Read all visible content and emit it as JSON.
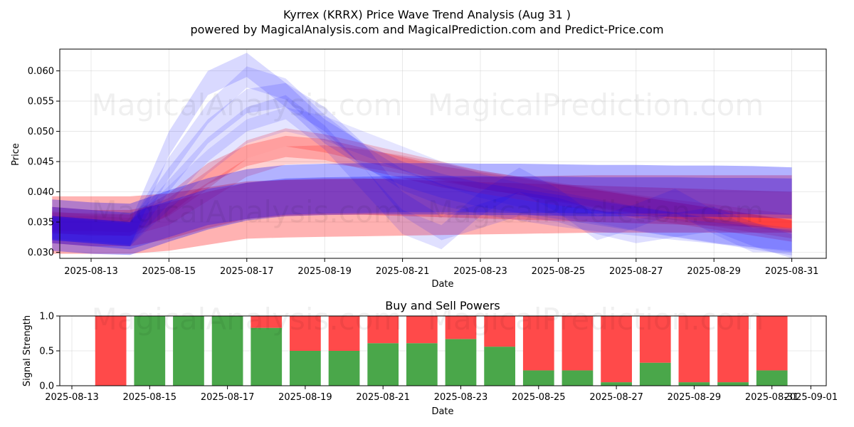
{
  "header": {
    "title": "Kyrrex (KRRX) Price Wave Trend Analysis (Aug 31 )",
    "subtitle": "powered by MagicalAnalysis.com and MagicalPrediction.com and Predict-Price.com"
  },
  "watermarks": {
    "left": "MagicalAnalysis.com",
    "right": "MagicalPrediction.com"
  },
  "colors": {
    "blue": "#0000ff",
    "red": "#ff0000",
    "buy": "#4aa74a",
    "sell": "#ff4a4a"
  },
  "chart_data": [
    {
      "type": "area",
      "title": "",
      "xlabel": "Date",
      "ylabel": "Price",
      "x_range": [
        "2025-08-12",
        "2025-09-01"
      ],
      "ylim": [
        0.029,
        0.0636
      ],
      "x_ticks": [
        "2025-08-13",
        "2025-08-15",
        "2025-08-17",
        "2025-08-19",
        "2025-08-21",
        "2025-08-23",
        "2025-08-25",
        "2025-08-27",
        "2025-08-29",
        "2025-08-31"
      ],
      "y_ticks": [
        "0.030",
        "0.035",
        "0.040",
        "0.045",
        "0.050",
        "0.055",
        "0.060"
      ],
      "grid": true,
      "x": [
        "2025-08-12",
        "2025-08-13",
        "2025-08-14",
        "2025-08-15",
        "2025-08-16",
        "2025-08-17",
        "2025-08-18",
        "2025-08-19",
        "2025-08-20",
        "2025-08-21",
        "2025-08-22",
        "2025-08-23",
        "2025-08-24",
        "2025-08-25",
        "2025-08-26",
        "2025-08-27",
        "2025-08-28",
        "2025-08-29",
        "2025-08-30",
        "2025-08-31"
      ],
      "series": [
        {
          "color": "red",
          "opacity": 0.3,
          "center": [
            0.0345,
            0.0345,
            0.0345,
            0.035,
            0.036,
            0.037,
            0.0372,
            0.0373,
            0.0374,
            0.0375,
            0.0376,
            0.0377,
            0.0378,
            0.0379,
            0.038,
            0.038,
            0.038,
            0.038,
            0.038,
            0.038
          ],
          "width": 0.0095
        },
        {
          "color": "red",
          "opacity": 0.28,
          "center": [
            0.0345,
            0.034,
            0.034,
            0.0352,
            0.037,
            0.0385,
            0.039,
            0.0392,
            0.0392,
            0.039,
            0.0388,
            0.0386,
            0.0384,
            0.0382,
            0.038,
            0.0378,
            0.0376,
            0.0374,
            0.0372,
            0.037
          ],
          "width": 0.006
        },
        {
          "color": "red",
          "opacity": 0.22,
          "center": [
            0.035,
            0.0345,
            0.0345,
            0.038,
            0.043,
            0.046,
            0.0475,
            0.047,
            0.0455,
            0.044,
            0.0425,
            0.0415,
            0.0405,
            0.0395,
            0.0385,
            0.0375,
            0.0365,
            0.0355,
            0.0345,
            0.0335
          ],
          "width": 0.0035
        },
        {
          "color": "red",
          "opacity": 0.2,
          "center": [
            0.035,
            0.035,
            0.0348,
            0.0375,
            0.042,
            0.047,
            0.049,
            0.048,
            0.0465,
            0.045,
            0.0435,
            0.042,
            0.041,
            0.0398,
            0.0388,
            0.0378,
            0.0368,
            0.0358,
            0.0348,
            0.0338
          ],
          "width": 0.003
        },
        {
          "color": "red",
          "opacity": 0.18,
          "center": [
            0.0345,
            0.0345,
            0.0342,
            0.036,
            0.04,
            0.044,
            0.046,
            0.0462,
            0.0455,
            0.0445,
            0.0432,
            0.042,
            0.041,
            0.04,
            0.039,
            0.038,
            0.0372,
            0.0364,
            0.0356,
            0.0348
          ],
          "width": 0.003
        },
        {
          "color": "blue",
          "opacity": 0.3,
          "center": [
            0.0345,
            0.034,
            0.0338,
            0.036,
            0.038,
            0.0395,
            0.0402,
            0.0404,
            0.0405,
            0.0405,
            0.0405,
            0.0404,
            0.0404,
            0.0403,
            0.0402,
            0.0402,
            0.0401,
            0.0401,
            0.04,
            0.0398
          ],
          "width": 0.0085
        },
        {
          "color": "blue",
          "opacity": 0.28,
          "center": [
            0.0345,
            0.034,
            0.0335,
            0.0355,
            0.0375,
            0.0385,
            0.0392,
            0.0394,
            0.0395,
            0.0396,
            0.0396,
            0.0396,
            0.0395,
            0.0395,
            0.0394,
            0.0394,
            0.0394,
            0.0393,
            0.0393,
            0.0392
          ],
          "width": 0.006
        },
        {
          "color": "blue",
          "opacity": 0.15,
          "center": [
            0.034,
            0.0335,
            0.033,
            0.048,
            0.058,
            0.061,
            0.056,
            0.05,
            0.046,
            0.043,
            0.041,
            0.0395,
            0.0385,
            0.0375,
            0.0365,
            0.0355,
            0.0345,
            0.0335,
            0.0325,
            0.0315
          ],
          "width": 0.004
        },
        {
          "color": "blue",
          "opacity": 0.13,
          "center": [
            0.034,
            0.0335,
            0.033,
            0.044,
            0.053,
            0.059,
            0.057,
            0.051,
            0.046,
            0.042,
            0.0395,
            0.038,
            0.037,
            0.036,
            0.0352,
            0.0345,
            0.0338,
            0.0332,
            0.0326,
            0.032
          ],
          "width": 0.0035
        },
        {
          "color": "blue",
          "opacity": 0.13,
          "center": [
            0.034,
            0.0335,
            0.033,
            0.042,
            0.05,
            0.055,
            0.056,
            0.052,
            0.046,
            0.038,
            0.034,
            0.036,
            0.038,
            0.037,
            0.035,
            0.0335,
            0.0345,
            0.0355,
            0.033,
            0.031
          ],
          "width": 0.004
        },
        {
          "color": "blue",
          "opacity": 0.12,
          "center": [
            0.034,
            0.0335,
            0.033,
            0.04,
            0.047,
            0.052,
            0.054,
            0.049,
            0.042,
            0.035,
            0.0325,
            0.038,
            0.042,
            0.0385,
            0.034,
            0.036,
            0.0385,
            0.035,
            0.032,
            0.032
          ],
          "width": 0.004
        },
        {
          "color": "blue",
          "opacity": 0.1,
          "center": [
            0.034,
            0.0335,
            0.033,
            0.039,
            0.045,
            0.05,
            0.052,
            0.0505,
            0.048,
            0.0455,
            0.043,
            0.041,
            0.0395,
            0.038,
            0.0368,
            0.0356,
            0.0346,
            0.0336,
            0.0328,
            0.032
          ],
          "width": 0.004
        }
      ]
    },
    {
      "type": "bar",
      "title": "Buy and Sell Powers",
      "xlabel": "Date",
      "ylabel": "Signal Strength",
      "ylim": [
        0,
        1
      ],
      "x_range": [
        "2025-08-12T12:00",
        "2025-09-01T03:00"
      ],
      "x_ticks": [
        "2025-08-13",
        "2025-08-15",
        "2025-08-17",
        "2025-08-19",
        "2025-08-21",
        "2025-08-23",
        "2025-08-25",
        "2025-08-27",
        "2025-08-29",
        "2025-08-31",
        "2025-09-01"
      ],
      "y_ticks": [
        "0.0",
        "0.5",
        "1.0"
      ],
      "grid": true,
      "categories": [
        "2025-08-14",
        "2025-08-15",
        "2025-08-16",
        "2025-08-17",
        "2025-08-18",
        "2025-08-19",
        "2025-08-20",
        "2025-08-21",
        "2025-08-22",
        "2025-08-23",
        "2025-08-24",
        "2025-08-25",
        "2025-08-26",
        "2025-08-27",
        "2025-08-28",
        "2025-08-29",
        "2025-08-30",
        "2025-08-31"
      ],
      "series": [
        {
          "name": "Buy",
          "color": "buy",
          "values": [
            0.0,
            1.0,
            1.0,
            1.0,
            0.83,
            0.5,
            0.5,
            0.61,
            0.61,
            0.67,
            0.56,
            0.22,
            0.22,
            0.05,
            0.33,
            0.05,
            0.05,
            0.22
          ]
        },
        {
          "name": "Sell",
          "color": "sell",
          "values": [
            1.0,
            0.0,
            0.0,
            0.0,
            0.17,
            0.5,
            0.5,
            0.39,
            0.39,
            0.33,
            0.44,
            0.78,
            0.78,
            0.95,
            0.67,
            0.95,
            0.95,
            0.78
          ]
        }
      ]
    }
  ]
}
